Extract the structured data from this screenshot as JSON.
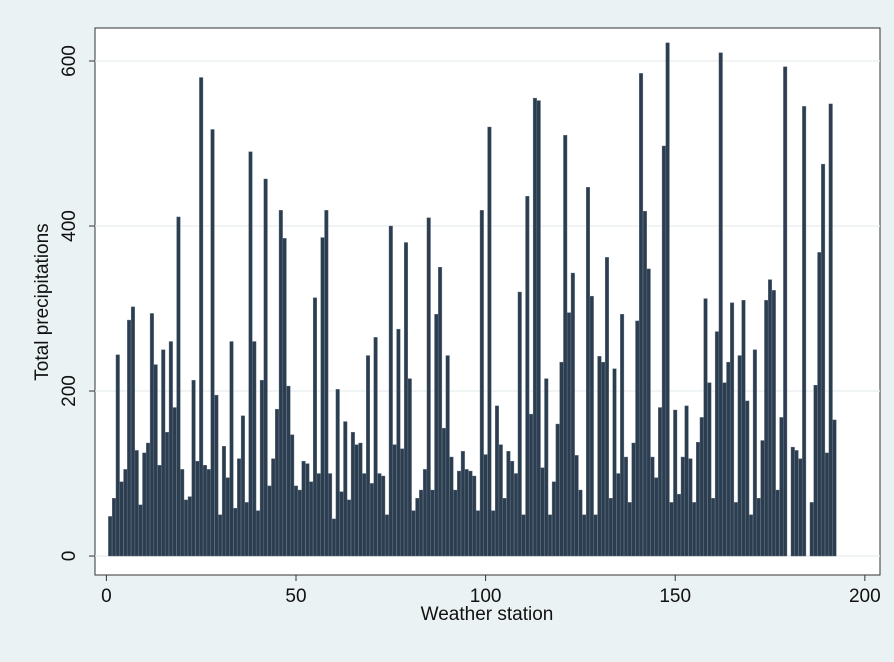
{
  "chart_data": {
    "type": "bar",
    "xlabel": "Weather station",
    "ylabel": "Total precipitations",
    "x": [
      1,
      2,
      3,
      4,
      5,
      6,
      7,
      8,
      9,
      10,
      11,
      12,
      13,
      14,
      15,
      16,
      17,
      18,
      19,
      20,
      21,
      22,
      23,
      24,
      25,
      26,
      27,
      28,
      29,
      30,
      31,
      32,
      33,
      34,
      35,
      36,
      37,
      38,
      39,
      40,
      41,
      42,
      43,
      44,
      45,
      46,
      47,
      48,
      49,
      50,
      51,
      52,
      53,
      54,
      55,
      56,
      57,
      58,
      59,
      60,
      61,
      62,
      63,
      64,
      65,
      66,
      67,
      68,
      69,
      70,
      71,
      72,
      73,
      74,
      75,
      76,
      77,
      78,
      79,
      80,
      81,
      82,
      83,
      84,
      85,
      86,
      87,
      88,
      89,
      90,
      91,
      92,
      93,
      94,
      95,
      96,
      97,
      98,
      99,
      100,
      101,
      102,
      103,
      104,
      105,
      106,
      107,
      108,
      109,
      110,
      111,
      112,
      113,
      114,
      115,
      116,
      117,
      118,
      119,
      120,
      121,
      122,
      123,
      124,
      125,
      126,
      127,
      128,
      129,
      130,
      131,
      132,
      133,
      134,
      135,
      136,
      137,
      138,
      139,
      140,
      141,
      142,
      143,
      144,
      145,
      146,
      147,
      148,
      149,
      150,
      151,
      152,
      153,
      154,
      155,
      156,
      157,
      158,
      159,
      160,
      161,
      162,
      163,
      164,
      165,
      166,
      167,
      168,
      169,
      170,
      171,
      172,
      173,
      174,
      175,
      176,
      177,
      178,
      179,
      180,
      181,
      182,
      183,
      184,
      185,
      186,
      187,
      188,
      189,
      190,
      191,
      192
    ],
    "values": [
      48,
      70,
      244,
      90,
      105,
      286,
      302,
      128,
      62,
      125,
      137,
      294,
      232,
      110,
      250,
      150,
      260,
      180,
      411,
      105,
      68,
      72,
      213,
      115,
      580,
      110,
      105,
      517,
      195,
      50,
      133,
      95,
      260,
      58,
      118,
      170,
      65,
      490,
      260,
      55,
      213,
      457,
      85,
      118,
      178,
      419,
      385,
      206,
      147,
      85,
      80,
      115,
      112,
      90,
      313,
      100,
      386,
      419,
      100,
      45,
      202,
      78,
      163,
      68,
      150,
      135,
      137,
      100,
      243,
      88,
      265,
      100,
      97,
      50,
      400,
      135,
      275,
      130,
      380,
      215,
      55,
      70,
      80,
      105,
      410,
      80,
      293,
      350,
      155,
      243,
      120,
      80,
      103,
      127,
      105,
      103,
      97,
      55,
      419,
      123,
      520,
      55,
      182,
      135,
      70,
      127,
      115,
      100,
      320,
      50,
      436,
      172,
      555,
      552,
      107,
      215,
      50,
      90,
      160,
      235,
      510,
      295,
      343,
      122,
      80,
      50,
      447,
      315,
      50,
      242,
      235,
      362,
      70,
      227,
      100,
      293,
      120,
      65,
      137,
      285,
      585,
      418,
      348,
      120,
      95,
      180,
      497,
      622,
      65,
      177,
      75,
      120,
      182,
      118,
      65,
      138,
      168,
      312,
      210,
      70,
      272,
      610,
      210,
      235,
      307,
      65,
      243,
      310,
      188,
      50,
      250,
      70,
      140,
      310,
      335,
      322,
      80,
      168,
      593,
      0,
      132,
      128,
      118,
      545,
      0,
      65,
      207,
      368,
      475,
      125,
      548,
      165
    ],
    "color": "#2b3d4f",
    "xlim": [
      -3,
      204
    ],
    "ylim": [
      -23,
      640
    ],
    "xticks": [
      0,
      50,
      100,
      150,
      200
    ],
    "yticks": [
      0,
      200,
      400,
      600
    ],
    "grid": true
  }
}
